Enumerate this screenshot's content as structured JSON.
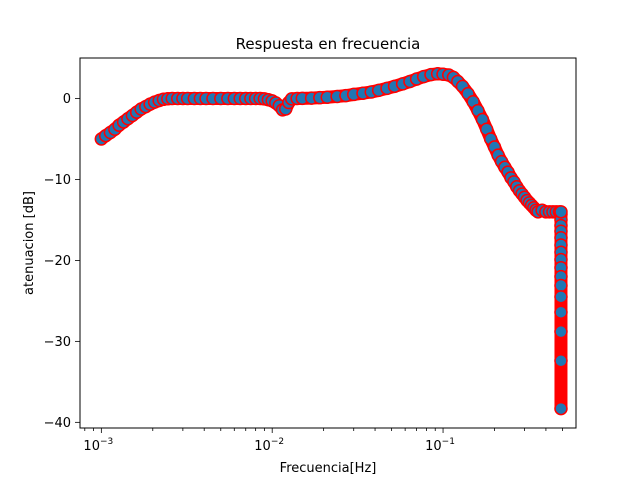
{
  "chart_data": {
    "type": "scatter",
    "title": "Respuesta en frecuencia",
    "xlabel": "Frecuencia[Hz]",
    "ylabel": "atenuacion [dB]",
    "xscale": "log",
    "xlim": [
      0.00075,
      0.6
    ],
    "ylim": [
      -40.7,
      5
    ],
    "xticks": [
      {
        "value": 0.001,
        "label": "10"
      },
      {
        "value": 0.01,
        "label": "10"
      },
      {
        "value": 0.1,
        "label": "10"
      }
    ],
    "xtick_exponents": [
      "−3",
      "−2",
      "−1"
    ],
    "yticks": [
      {
        "value": 0,
        "label": "0"
      },
      {
        "value": -10,
        "label": "−10"
      },
      {
        "value": -20,
        "label": "−20"
      },
      {
        "value": -30,
        "label": "−30"
      },
      {
        "value": -40,
        "label": "−40"
      }
    ],
    "grid": false,
    "marker": {
      "face_color": "#1f77b4",
      "edge_color": "#ff0000"
    },
    "series": [
      {
        "x": [
          0.001,
          0.00106,
          0.00113,
          0.0012,
          0.00127,
          0.00135,
          0.00143,
          0.00152,
          0.00161,
          0.00171,
          0.00182,
          0.00193,
          0.00205,
          0.00218,
          0.00231,
          0.00245,
          0.0026,
          0.0028,
          0.003,
          0.0032,
          0.0035,
          0.0038,
          0.0041,
          0.0045,
          0.005,
          0.0055,
          0.006,
          0.0065,
          0.007,
          0.0075,
          0.008,
          0.0085,
          0.009,
          0.0095,
          0.01,
          0.0105,
          0.011,
          0.0115,
          0.012,
          0.0125,
          0.013,
          0.014,
          0.015,
          0.017,
          0.019,
          0.021,
          0.024,
          0.027,
          0.03,
          0.034,
          0.038,
          0.042,
          0.047,
          0.052,
          0.058,
          0.064,
          0.07,
          0.077,
          0.085,
          0.093,
          0.1,
          0.108,
          0.115,
          0.122,
          0.13,
          0.14,
          0.15,
          0.16,
          0.17,
          0.18,
          0.19,
          0.2,
          0.21,
          0.22,
          0.23,
          0.24,
          0.25,
          0.26,
          0.27,
          0.28,
          0.29,
          0.3,
          0.31,
          0.32,
          0.33,
          0.34,
          0.35,
          0.36,
          0.38,
          0.4,
          0.42,
          0.44,
          0.46,
          0.48,
          0.49,
          0.49,
          0.49,
          0.49,
          0.49,
          0.49,
          0.49,
          0.49,
          0.49,
          0.49,
          0.49,
          0.49,
          0.49,
          0.49,
          0.49,
          0.49,
          0.49
        ],
        "y": [
          -5.0,
          -4.6,
          -4.2,
          -3.8,
          -3.3,
          -2.9,
          -2.5,
          -2.1,
          -1.7,
          -1.3,
          -1.0,
          -0.7,
          -0.45,
          -0.25,
          -0.1,
          -0.03,
          0.0,
          0.0,
          0.0,
          0.0,
          0.0,
          0.0,
          0.0,
          0.0,
          0.0,
          0.0,
          0.0,
          0.0,
          0.0,
          0.0,
          0.0,
          0.0,
          -0.05,
          -0.15,
          -0.3,
          -0.55,
          -0.9,
          -1.4,
          -1.3,
          -0.5,
          -0.05,
          0.0,
          0.02,
          0.05,
          0.1,
          0.15,
          0.25,
          0.35,
          0.5,
          0.65,
          0.8,
          1.0,
          1.25,
          1.5,
          1.8,
          2.1,
          2.4,
          2.7,
          2.95,
          3.05,
          3.0,
          2.9,
          2.6,
          2.1,
          1.5,
          0.6,
          -0.4,
          -1.5,
          -2.6,
          -3.8,
          -5.0,
          -6.0,
          -7.0,
          -7.8,
          -8.5,
          -9.1,
          -9.8,
          -10.3,
          -10.9,
          -11.4,
          -11.8,
          -12.2,
          -12.6,
          -12.9,
          -13.2,
          -13.5,
          -13.8,
          -14.0,
          -13.8,
          -14.0,
          -14.0,
          -14.0,
          -14.0,
          -14.0,
          -14.3,
          -15.0,
          -15.7,
          -16.4,
          -17.2,
          -18.1,
          -19.0,
          -19.9,
          -20.9,
          -22.0,
          -23.1,
          -24.5,
          -26.4,
          -28.8,
          -32.4,
          -38.3,
          -14.0
        ]
      }
    ]
  }
}
